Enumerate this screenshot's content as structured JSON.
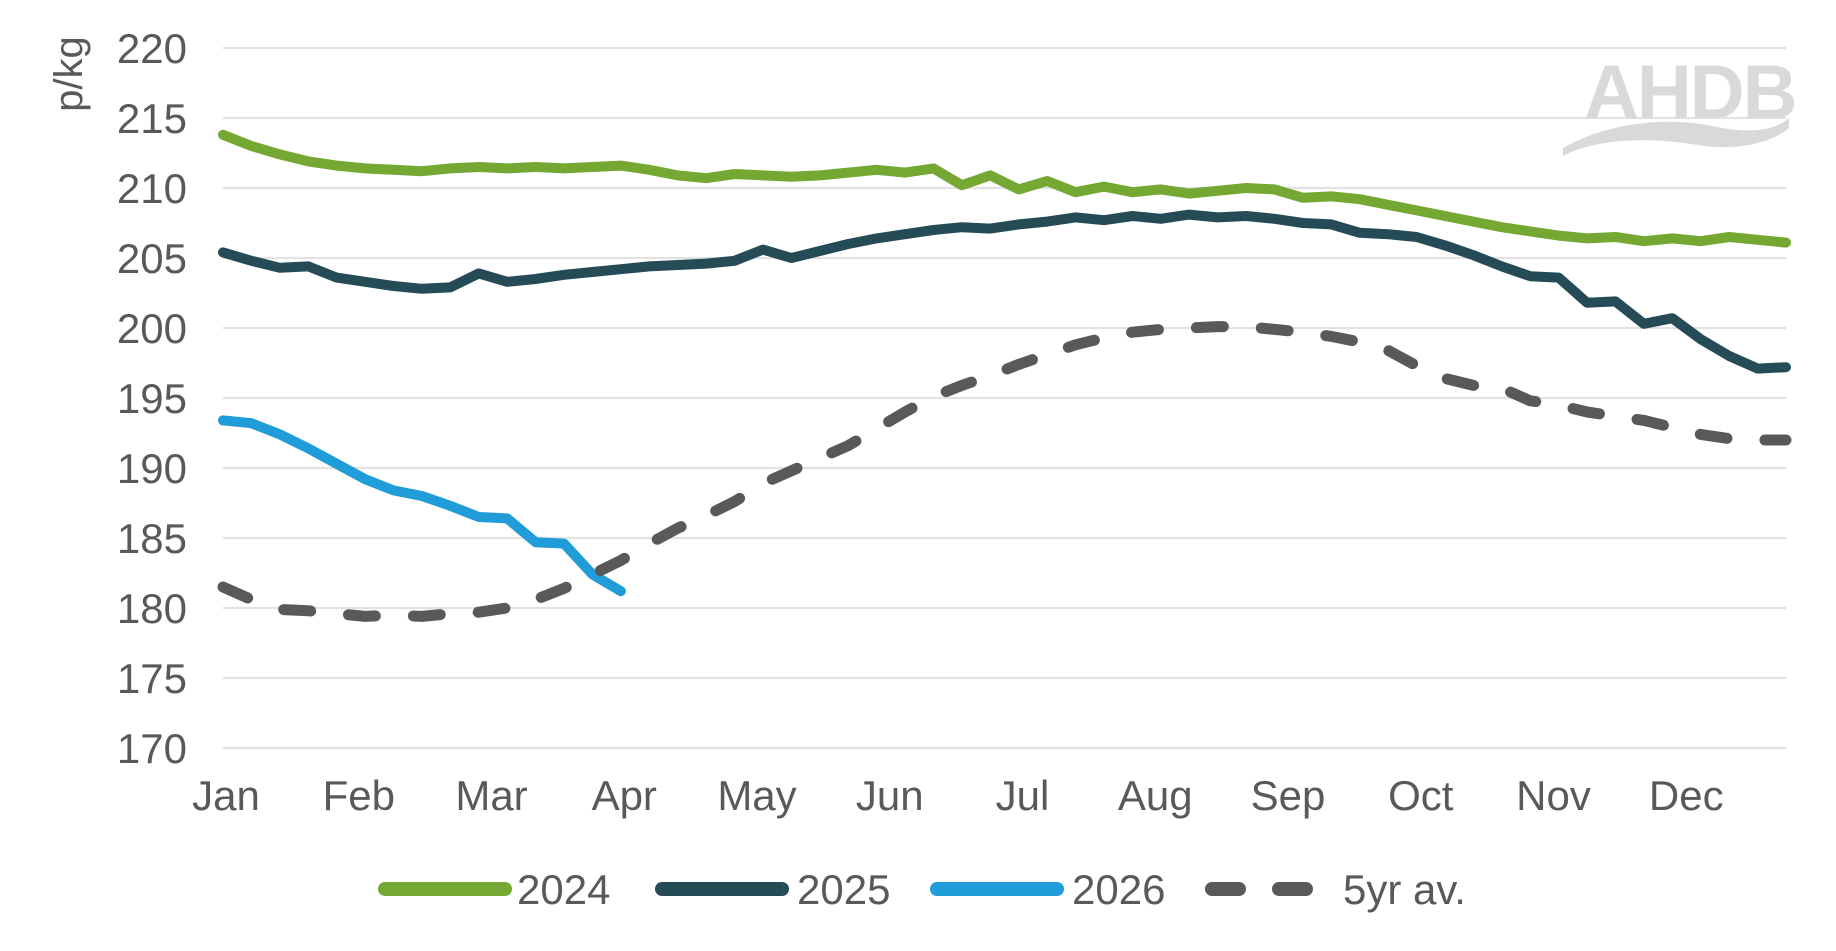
{
  "watermark": "AHDB",
  "colors": {
    "series_2024": "#75A733",
    "series_2025": "#254B57",
    "series_2026": "#209CD8",
    "series_5yr": "#595959",
    "gridline": "#E2E2E2",
    "axis_text": "#595959",
    "logo": "#D9D9D9"
  },
  "chart_data": {
    "type": "line",
    "title": "",
    "ylabel": "p/kg",
    "xlabel": "",
    "ylim": [
      170,
      220
    ],
    "y_ticks": [
      170,
      175,
      180,
      185,
      190,
      195,
      200,
      205,
      210,
      215,
      220
    ],
    "grid": "horizontal",
    "legend_position": "bottom",
    "x_categories": [
      "Jan",
      "Feb",
      "Mar",
      "Apr",
      "May",
      "Jun",
      "Jul",
      "Aug",
      "Sep",
      "Oct",
      "Nov",
      "Dec"
    ],
    "x_resolution": "weekly",
    "series": [
      {
        "name": "2024",
        "style": "solid",
        "color": "#75A733",
        "values": [
          213.8,
          213.0,
          212.4,
          211.9,
          211.6,
          211.4,
          211.3,
          211.2,
          211.4,
          211.5,
          211.4,
          211.5,
          211.4,
          211.5,
          211.6,
          211.3,
          210.9,
          210.7,
          211.0,
          210.9,
          210.8,
          210.9,
          211.1,
          211.3,
          211.1,
          211.4,
          210.2,
          210.9,
          209.9,
          210.5,
          209.7,
          210.1,
          209.7,
          209.9,
          209.6,
          209.8,
          210.0,
          209.9,
          209.3,
          209.4,
          209.2,
          208.8,
          208.4,
          208.0,
          207.6,
          207.2,
          206.9,
          206.6,
          206.4,
          206.5,
          206.2,
          206.4,
          206.2,
          206.5,
          206.3,
          206.1
        ]
      },
      {
        "name": "2025",
        "style": "solid",
        "color": "#254B57",
        "values": [
          205.4,
          204.8,
          204.3,
          204.4,
          203.6,
          203.3,
          203.0,
          202.8,
          202.9,
          203.9,
          203.3,
          203.5,
          203.8,
          204.0,
          204.2,
          204.4,
          204.5,
          204.6,
          204.8,
          205.6,
          205.0,
          205.5,
          206.0,
          206.4,
          206.7,
          207.0,
          207.2,
          207.1,
          207.4,
          207.6,
          207.9,
          207.7,
          208.0,
          207.8,
          208.1,
          207.9,
          208.0,
          207.8,
          207.5,
          207.4,
          206.8,
          206.7,
          206.5,
          205.9,
          205.2,
          204.4,
          203.7,
          203.6,
          201.8,
          201.9,
          200.3,
          200.7,
          199.2,
          198.0,
          197.1,
          197.2
        ]
      },
      {
        "name": "2026",
        "style": "solid",
        "color": "#209CD8",
        "values": [
          193.4,
          193.2,
          192.4,
          191.4,
          190.3,
          189.2,
          188.4,
          188.0,
          187.3,
          186.5,
          186.4,
          184.7,
          184.6,
          182.4,
          181.2
        ]
      },
      {
        "name": "5yr av.",
        "style": "dashed",
        "color": "#595959",
        "values": [
          181.5,
          180.6,
          179.9,
          179.8,
          179.6,
          179.4,
          179.5,
          179.4,
          179.6,
          179.7,
          180.0,
          180.6,
          181.4,
          182.4,
          183.4,
          184.6,
          185.7,
          186.6,
          187.6,
          188.9,
          189.8,
          190.7,
          191.6,
          192.8,
          194.0,
          195.1,
          195.9,
          196.6,
          197.4,
          198.1,
          198.8,
          199.3,
          199.7,
          199.9,
          200.0,
          200.1,
          200.1,
          199.9,
          199.7,
          199.4,
          199.0,
          198.4,
          197.3,
          196.4,
          195.9,
          195.7,
          194.8,
          194.5,
          194.0,
          193.7,
          193.4,
          192.9,
          192.4,
          192.1,
          192.0,
          192.0
        ]
      }
    ]
  }
}
